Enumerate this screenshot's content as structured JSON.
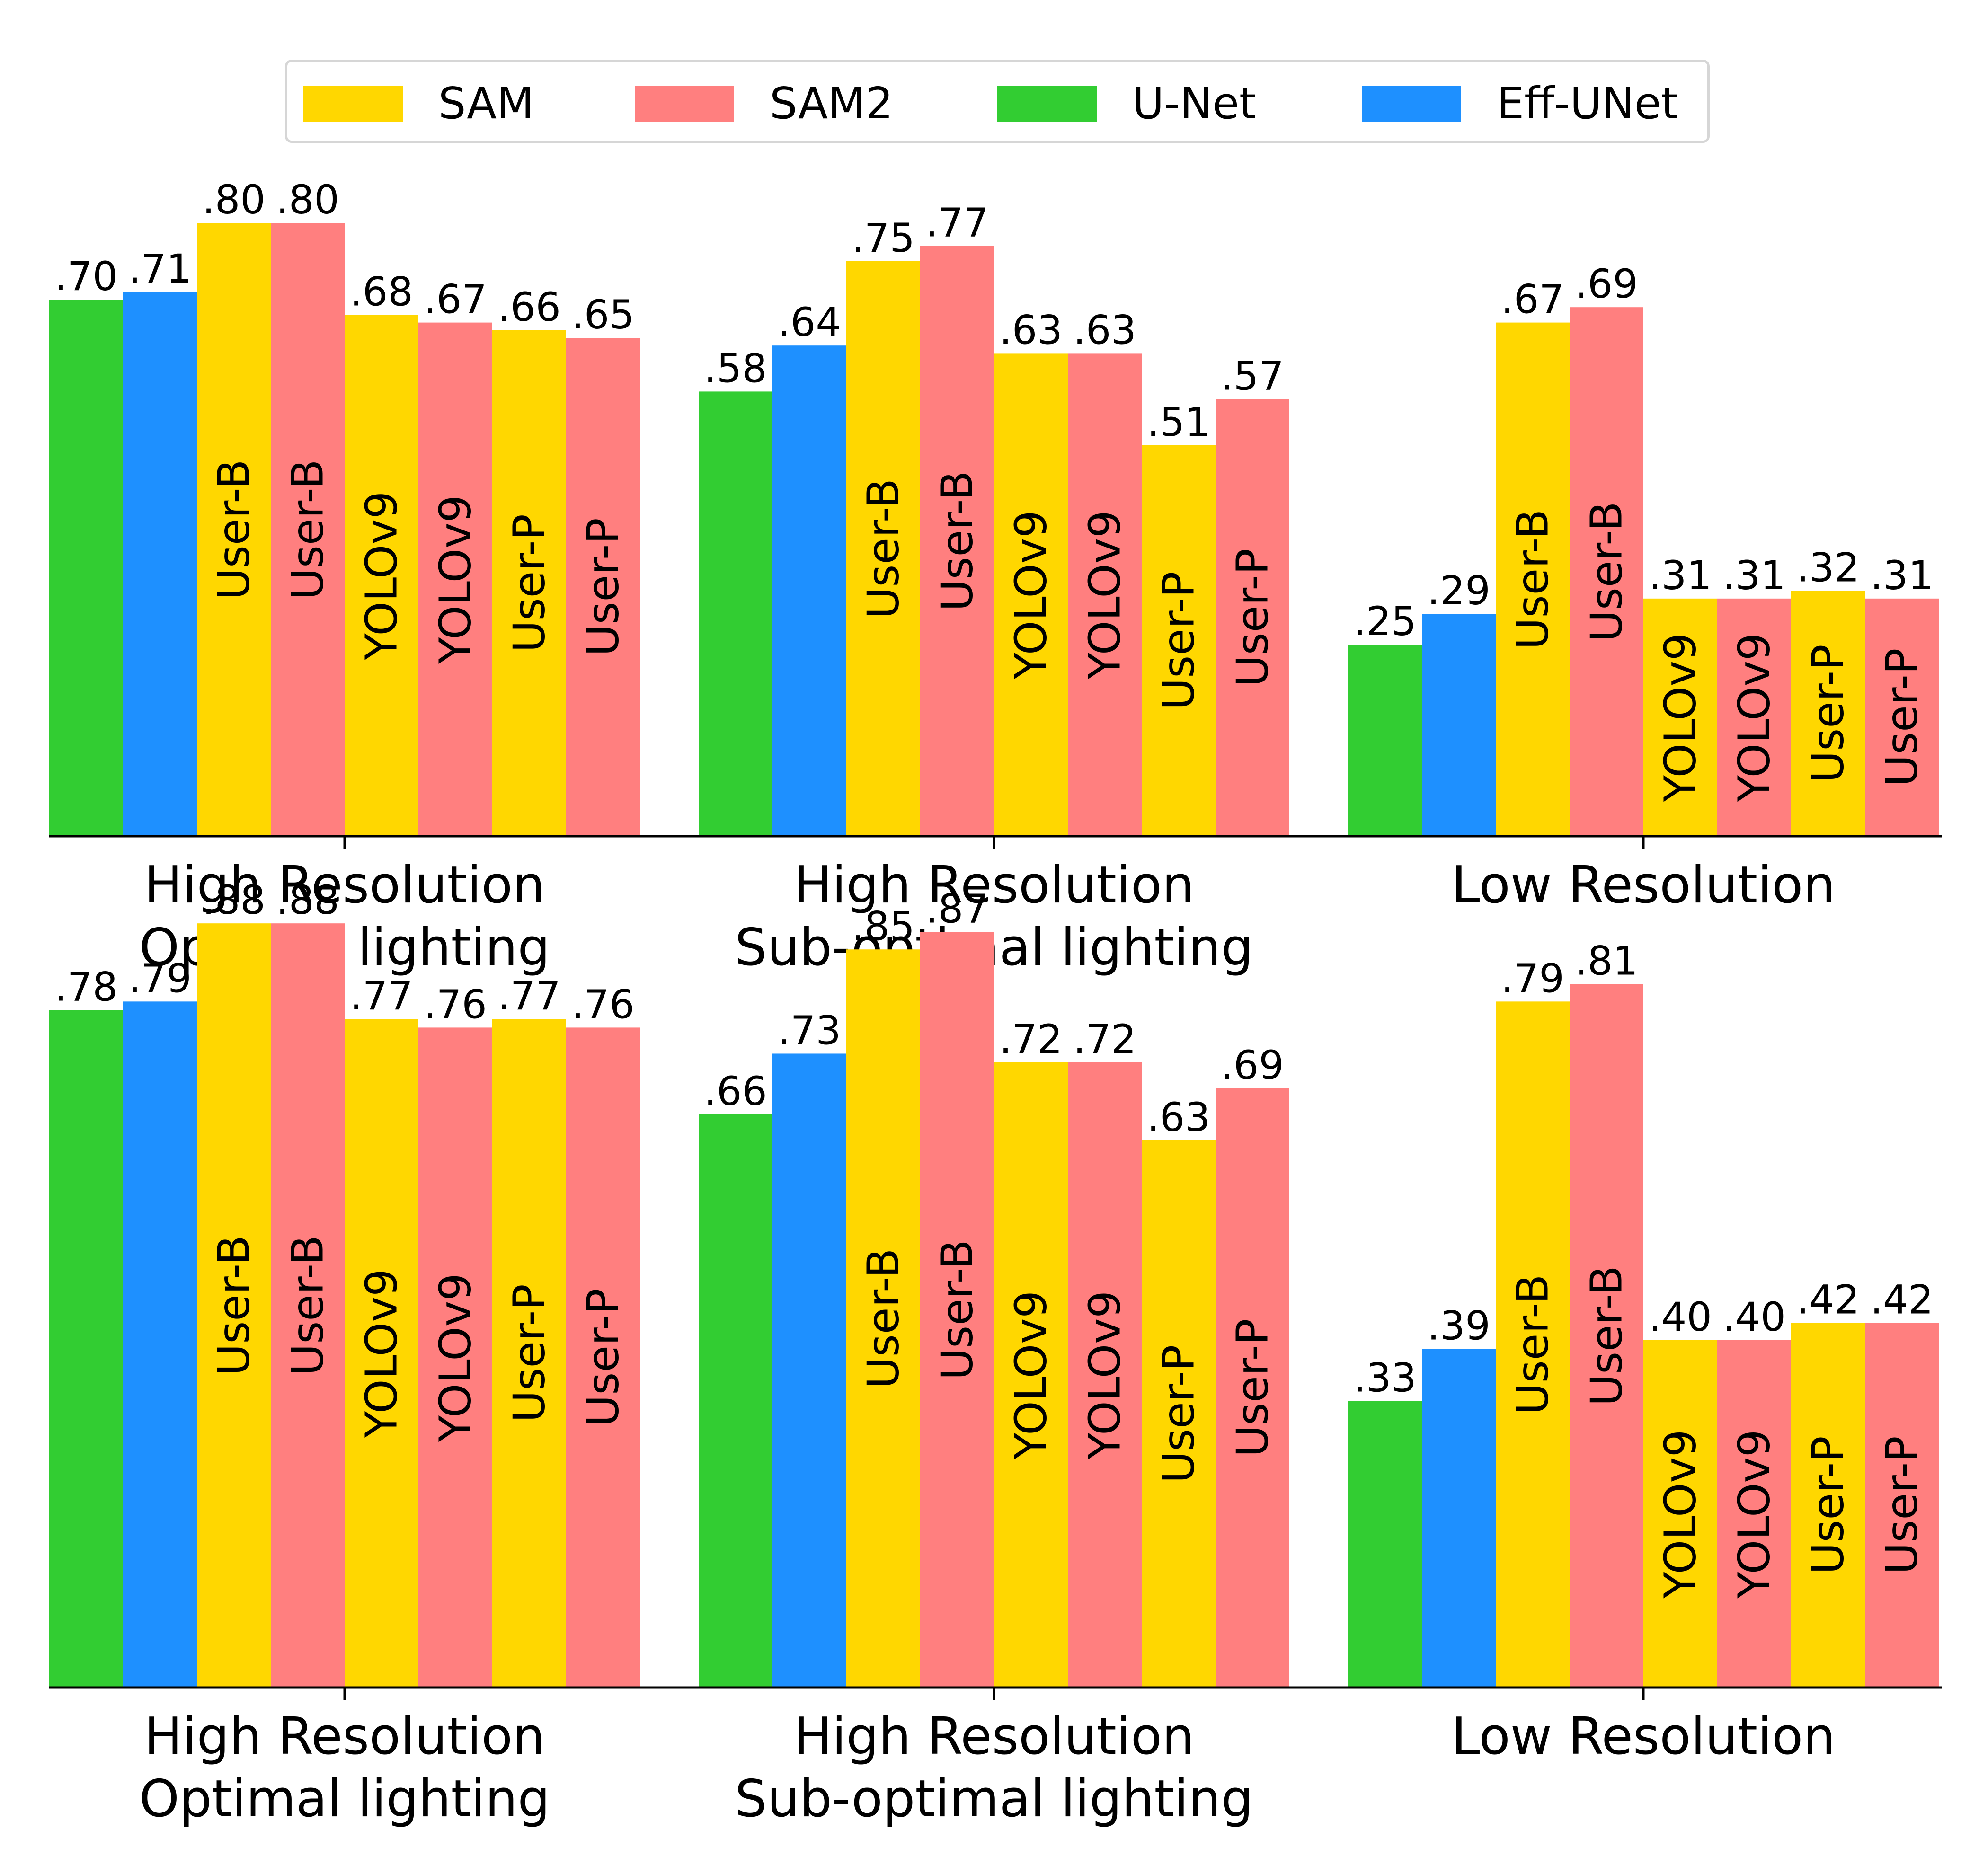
{
  "legend": {
    "entries": [
      {
        "name": "SAM",
        "color": "#FFD700"
      },
      {
        "name": "SAM2",
        "color": "#FF7F7F"
      },
      {
        "name": "U-Net",
        "color": "#32CD32"
      },
      {
        "name": "Eff-UNet",
        "color": "#1E90FF"
      }
    ]
  },
  "chart_data": [
    {
      "type": "bar",
      "panel": "top",
      "title": "",
      "xlabel": "",
      "ylabel": "",
      "ylim": [
        0,
        0.8
      ],
      "grid": false,
      "legend_position": "top-center",
      "groups": [
        {
          "label": [
            "High Resolution",
            "Optimal lighting"
          ],
          "bars": [
            {
              "model": "U-Net",
              "value": 0.7,
              "label": ".70",
              "inner": ""
            },
            {
              "model": "Eff-UNet",
              "value": 0.71,
              "label": ".71",
              "inner": ""
            },
            {
              "model": "SAM",
              "value": 0.8,
              "label": ".80",
              "inner": "User-B"
            },
            {
              "model": "SAM2",
              "value": 0.8,
              "label": ".80",
              "inner": "User-B"
            },
            {
              "model": "SAM",
              "value": 0.68,
              "label": ".68",
              "inner": "YOLOv9"
            },
            {
              "model": "SAM2",
              "value": 0.67,
              "label": ".67",
              "inner": "YOLOv9"
            },
            {
              "model": "SAM",
              "value": 0.66,
              "label": ".66",
              "inner": "User-P"
            },
            {
              "model": "SAM2",
              "value": 0.65,
              "label": ".65",
              "inner": "User-P"
            }
          ]
        },
        {
          "label": [
            "High Resolution",
            "Sub-optimal lighting"
          ],
          "bars": [
            {
              "model": "U-Net",
              "value": 0.58,
              "label": ".58",
              "inner": ""
            },
            {
              "model": "Eff-UNet",
              "value": 0.64,
              "label": ".64",
              "inner": ""
            },
            {
              "model": "SAM",
              "value": 0.75,
              "label": ".75",
              "inner": "User-B"
            },
            {
              "model": "SAM2",
              "value": 0.77,
              "label": ".77",
              "inner": "User-B"
            },
            {
              "model": "SAM",
              "value": 0.63,
              "label": ".63",
              "inner": "YOLOv9"
            },
            {
              "model": "SAM2",
              "value": 0.63,
              "label": ".63",
              "inner": "YOLOv9"
            },
            {
              "model": "SAM",
              "value": 0.51,
              "label": ".51",
              "inner": "User-P"
            },
            {
              "model": "SAM2",
              "value": 0.57,
              "label": ".57",
              "inner": "User-P"
            }
          ]
        },
        {
          "label": [
            "Low Resolution"
          ],
          "bars": [
            {
              "model": "U-Net",
              "value": 0.25,
              "label": ".25",
              "inner": ""
            },
            {
              "model": "Eff-UNet",
              "value": 0.29,
              "label": ".29",
              "inner": ""
            },
            {
              "model": "SAM",
              "value": 0.67,
              "label": ".67",
              "inner": "User-B"
            },
            {
              "model": "SAM2",
              "value": 0.69,
              "label": ".69",
              "inner": "User-B"
            },
            {
              "model": "SAM",
              "value": 0.31,
              "label": ".31",
              "inner": "YOLOv9"
            },
            {
              "model": "SAM2",
              "value": 0.31,
              "label": ".31",
              "inner": "YOLOv9"
            },
            {
              "model": "SAM",
              "value": 0.32,
              "label": ".32",
              "inner": "User-P"
            },
            {
              "model": "SAM2",
              "value": 0.31,
              "label": ".31",
              "inner": "User-P"
            }
          ]
        }
      ]
    },
    {
      "type": "bar",
      "panel": "bottom",
      "title": "",
      "xlabel": "",
      "ylabel": "",
      "ylim": [
        0,
        0.88
      ],
      "grid": false,
      "groups": [
        {
          "label": [
            "High Resolution",
            "Optimal lighting"
          ],
          "bars": [
            {
              "model": "U-Net",
              "value": 0.78,
              "label": ".78",
              "inner": ""
            },
            {
              "model": "Eff-UNet",
              "value": 0.79,
              "label": ".79",
              "inner": ""
            },
            {
              "model": "SAM",
              "value": 0.88,
              "label": ".88",
              "inner": "User-B"
            },
            {
              "model": "SAM2",
              "value": 0.88,
              "label": ".88",
              "inner": "User-B"
            },
            {
              "model": "SAM",
              "value": 0.77,
              "label": ".77",
              "inner": "YOLOv9"
            },
            {
              "model": "SAM2",
              "value": 0.76,
              "label": ".76",
              "inner": "YOLOv9"
            },
            {
              "model": "SAM",
              "value": 0.77,
              "label": ".77",
              "inner": "User-P"
            },
            {
              "model": "SAM2",
              "value": 0.76,
              "label": ".76",
              "inner": "User-P"
            }
          ]
        },
        {
          "label": [
            "High Resolution",
            "Sub-optimal lighting"
          ],
          "bars": [
            {
              "model": "U-Net",
              "value": 0.66,
              "label": ".66",
              "inner": ""
            },
            {
              "model": "Eff-UNet",
              "value": 0.73,
              "label": ".73",
              "inner": ""
            },
            {
              "model": "SAM",
              "value": 0.85,
              "label": ".85",
              "inner": "User-B"
            },
            {
              "model": "SAM2",
              "value": 0.87,
              "label": ".87",
              "inner": "User-B"
            },
            {
              "model": "SAM",
              "value": 0.72,
              "label": ".72",
              "inner": "YOLOv9"
            },
            {
              "model": "SAM2",
              "value": 0.72,
              "label": ".72",
              "inner": "YOLOv9"
            },
            {
              "model": "SAM",
              "value": 0.63,
              "label": ".63",
              "inner": "User-P"
            },
            {
              "model": "SAM2",
              "value": 0.69,
              "label": ".69",
              "inner": "User-P"
            }
          ]
        },
        {
          "label": [
            "Low Resolution"
          ],
          "bars": [
            {
              "model": "U-Net",
              "value": 0.33,
              "label": ".33",
              "inner": ""
            },
            {
              "model": "Eff-UNet",
              "value": 0.39,
              "label": ".39",
              "inner": ""
            },
            {
              "model": "SAM",
              "value": 0.79,
              "label": ".79",
              "inner": "User-B"
            },
            {
              "model": "SAM2",
              "value": 0.81,
              "label": ".81",
              "inner": "User-B"
            },
            {
              "model": "SAM",
              "value": 0.4,
              "label": ".40",
              "inner": "YOLOv9"
            },
            {
              "model": "SAM2",
              "value": 0.4,
              "label": ".40",
              "inner": "YOLOv9"
            },
            {
              "model": "SAM",
              "value": 0.42,
              "label": ".42",
              "inner": "User-P"
            },
            {
              "model": "SAM2",
              "value": 0.42,
              "label": ".42",
              "inner": "User-P"
            }
          ]
        }
      ]
    }
  ]
}
